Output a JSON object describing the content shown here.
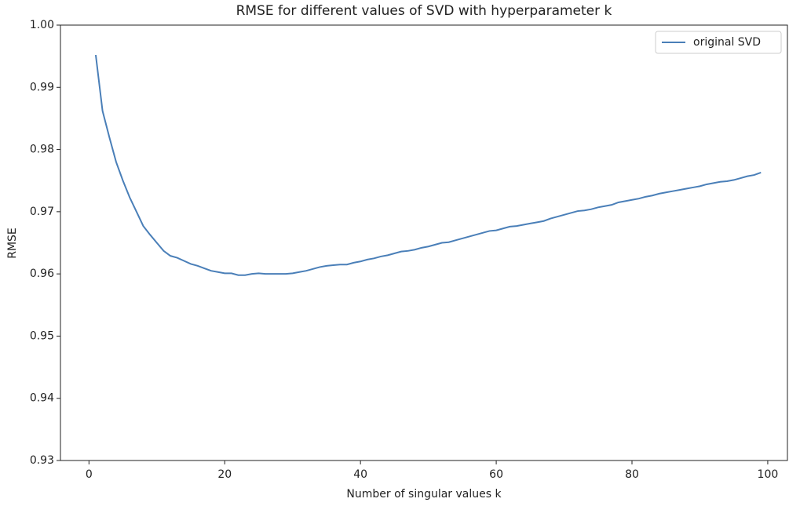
{
  "chart_data": {
    "type": "line",
    "title": "RMSE for different values of SVD with hyperparameter k",
    "x_label": "Number of singular values k",
    "y_label": "RMSE",
    "x": [
      1,
      2,
      3,
      4,
      5,
      6,
      7,
      8,
      9,
      10,
      11,
      12,
      13,
      14,
      15,
      16,
      17,
      18,
      19,
      20,
      21,
      22,
      23,
      24,
      25,
      26,
      27,
      28,
      29,
      30,
      31,
      32,
      33,
      34,
      35,
      36,
      37,
      38,
      39,
      40,
      41,
      42,
      43,
      44,
      45,
      46,
      47,
      48,
      49,
      50,
      51,
      52,
      53,
      54,
      55,
      56,
      57,
      58,
      59,
      60,
      61,
      62,
      63,
      64,
      65,
      66,
      67,
      68,
      69,
      70,
      71,
      72,
      73,
      74,
      75,
      76,
      77,
      78,
      79,
      80,
      81,
      82,
      83,
      84,
      85,
      86,
      87,
      88,
      89,
      90,
      91,
      92,
      93,
      94,
      95,
      96,
      97,
      98,
      99
    ],
    "series": [
      {
        "name": "original SVD",
        "color": "#4a7fb8",
        "values": [
          0.9952,
          0.9862,
          0.982,
          0.978,
          0.975,
          0.9723,
          0.97,
          0.9677,
          0.9663,
          0.965,
          0.9637,
          0.9629,
          0.9626,
          0.9621,
          0.9616,
          0.9613,
          0.9609,
          0.9605,
          0.9603,
          0.9601,
          0.9601,
          0.9598,
          0.9598,
          0.96,
          0.9601,
          0.96,
          0.96,
          0.96,
          0.96,
          0.9601,
          0.9603,
          0.9605,
          0.9608,
          0.9611,
          0.9613,
          0.9614,
          0.9615,
          0.9615,
          0.9618,
          0.962,
          0.9623,
          0.9625,
          0.9628,
          0.963,
          0.9633,
          0.9636,
          0.9637,
          0.9639,
          0.9642,
          0.9644,
          0.9647,
          0.965,
          0.9651,
          0.9654,
          0.9657,
          0.966,
          0.9663,
          0.9666,
          0.9669,
          0.967,
          0.9673,
          0.9676,
          0.9677,
          0.9679,
          0.9681,
          0.9683,
          0.9685,
          0.9689,
          0.9692,
          0.9695,
          0.9698,
          0.9701,
          0.9702,
          0.9704,
          0.9707,
          0.9709,
          0.9711,
          0.9715,
          0.9717,
          0.9719,
          0.9721,
          0.9724,
          0.9726,
          0.9729,
          0.9731,
          0.9733,
          0.9735,
          0.9737,
          0.9739,
          0.9741,
          0.9744,
          0.9746,
          0.9748,
          0.9749,
          0.9751,
          0.9754,
          0.9757,
          0.9759,
          0.9763
        ]
      }
    ],
    "xlim": [
      -4.2,
      102.9
    ],
    "xticks": [
      0,
      20,
      40,
      60,
      80,
      100
    ],
    "ylim": [
      0.93,
      1
    ],
    "yticks": [
      0.93,
      0.94,
      0.95,
      0.96,
      0.97,
      0.98,
      0.99,
      {
        "value": 1,
        "label": "1.00"
      }
    ],
    "legend": "upper right"
  }
}
